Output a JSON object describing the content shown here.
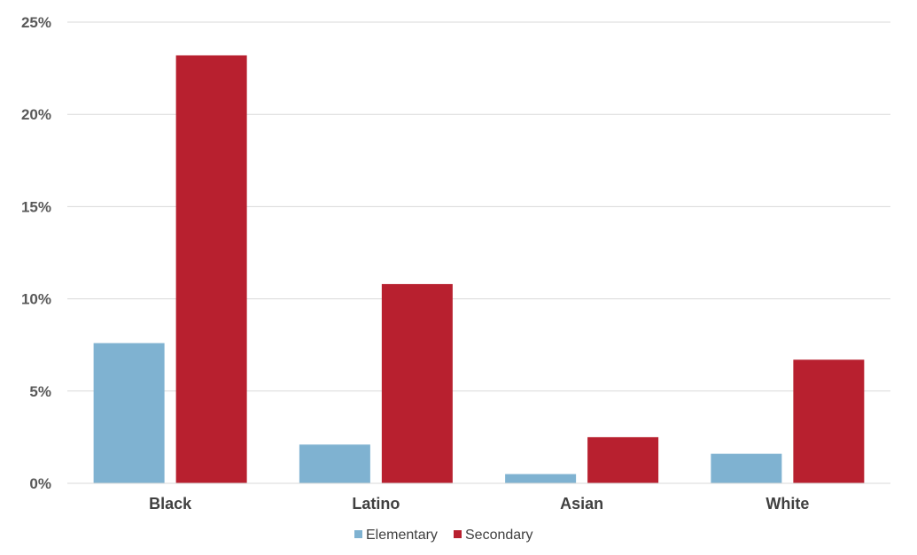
{
  "chart_data": {
    "type": "bar",
    "title": "",
    "xlabel": "",
    "ylabel": "",
    "categories": [
      "Black",
      "Latino",
      "Asian",
      "White"
    ],
    "series": [
      {
        "name": "Elementary",
        "values": [
          7.6,
          2.1,
          0.5,
          1.6
        ],
        "color": "#7FB2D1"
      },
      {
        "name": "Secondary",
        "values": [
          23.2,
          10.8,
          2.5,
          6.7
        ],
        "color": "#B8202F"
      }
    ],
    "ylim": [
      0,
      25
    ],
    "yticks": [
      0,
      5,
      10,
      15,
      20,
      25
    ],
    "ytick_labels": [
      "0%",
      "5%",
      "10%",
      "15%",
      "20%",
      "25%"
    ],
    "grid": true,
    "legend": "bottom-center"
  }
}
